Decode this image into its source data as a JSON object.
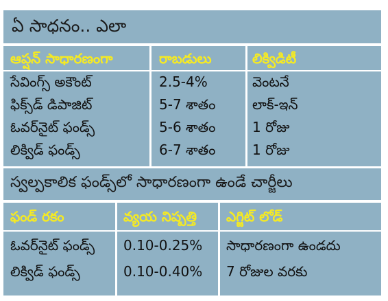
{
  "title": "ఏ సాధనం.. ఎలా",
  "table1": {
    "headers": [
      "ఆప్షన్ సాధారణంగా",
      "రాబడులు",
      "లిక్విడిటీ"
    ],
    "rows": [
      [
        "సేవింగ్స్ అకౌంట్",
        "2.5-4%",
        "వెంటనే"
      ],
      [
        "ఫిక్స్‌డ్ డిపాజిట్",
        "5-7 శాతం",
        "లాక్-ఇన్"
      ],
      [
        "ఓవర్‌నైట్ ఫండ్స్",
        "5-6 శాతం",
        "1 రోజు"
      ],
      [
        "లిక్విడ్ ఫండ్స్",
        "6-7 శాతం",
        "1 రోజు"
      ]
    ]
  },
  "subtitle": "స్వల్పకాలిక ఫండ్స్‌లో సాధారణంగా ఉండే చార్జీలు",
  "table2": {
    "headers": [
      "ఫండ్ రకం",
      "వ్యయ నిష్పత్తి",
      "ఎగ్జిట్ లోడ్"
    ],
    "rows": [
      [
        "ఓవర్‌నైట్ ఫండ్స్",
        "0.10-0.25%",
        "సాధారణంగా ఉండదు"
      ],
      [
        "లిక్విడ్ ఫండ్స్",
        "0.10-0.40%",
        "7 రోజుల వరకు"
      ]
    ]
  },
  "colors": {
    "band": "#8fb1c4",
    "header_text": "#f5ea23",
    "body_text": "#111111"
  }
}
